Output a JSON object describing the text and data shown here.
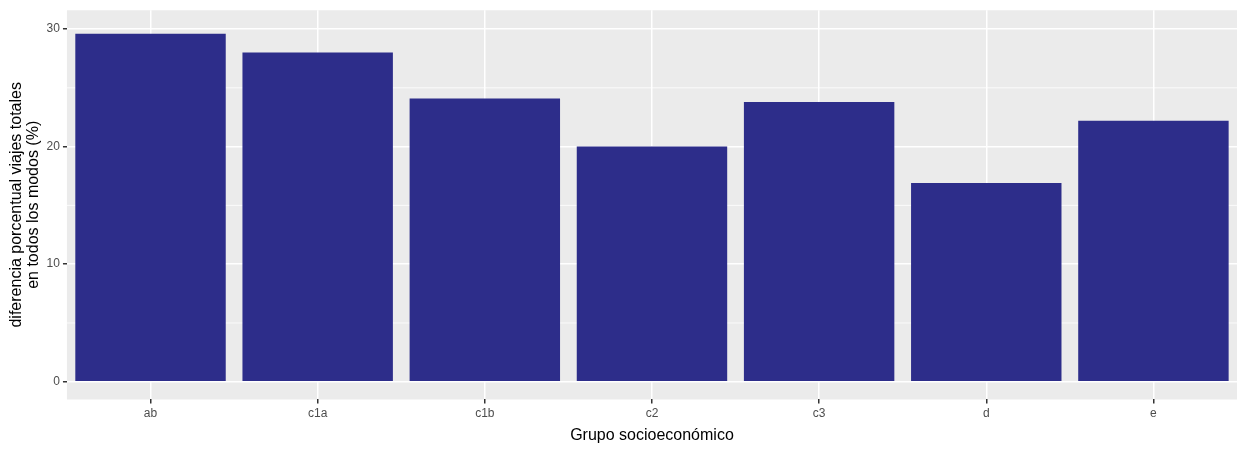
{
  "chart_data": {
    "type": "bar",
    "xlabel": "Grupo socioeconómico",
    "ylabel": "diferencia porcentual viajes totales\nen todos los modos (%)",
    "categories": [
      "ab",
      "c1a",
      "c1b",
      "c2",
      "c3",
      "d",
      "e"
    ],
    "values": [
      29.6,
      28.0,
      24.1,
      20.0,
      23.8,
      16.9,
      22.2
    ],
    "color": "#2d2d8a",
    "ylim": [
      -1.5,
      31.6
    ],
    "yticks": [
      0,
      10,
      20,
      30
    ],
    "grid": true
  }
}
